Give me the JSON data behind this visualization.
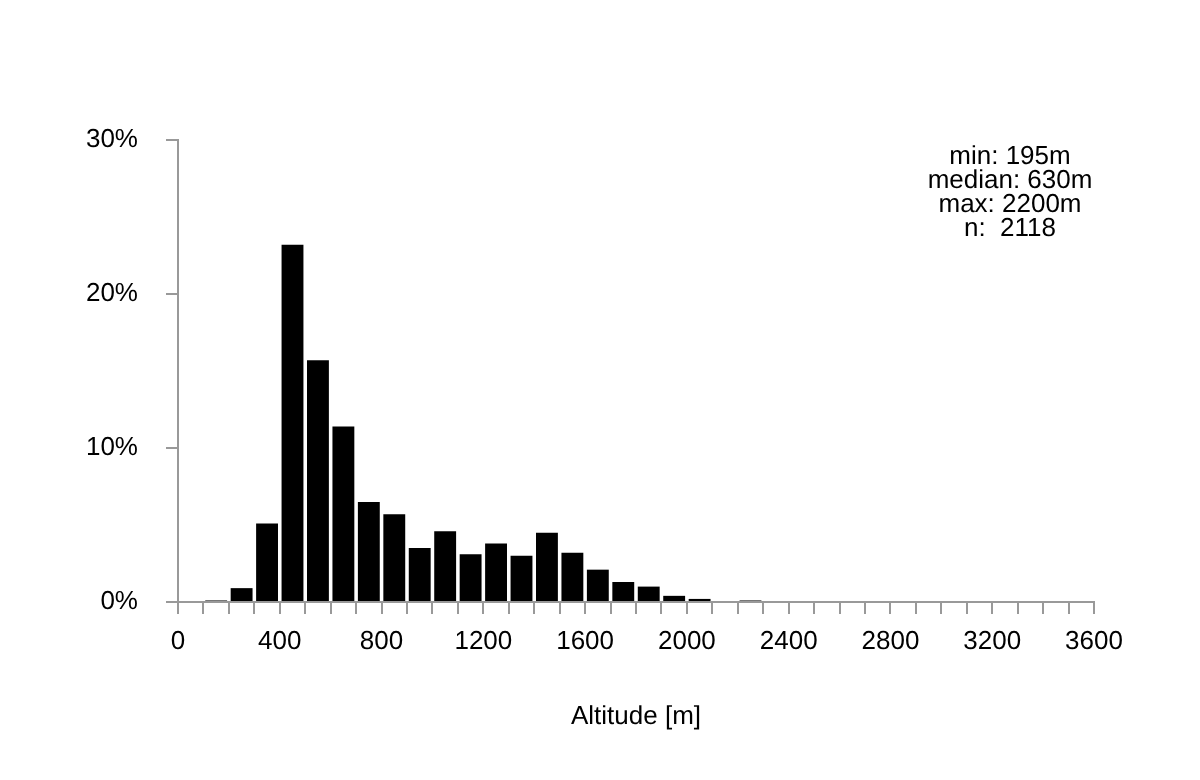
{
  "chart_data": {
    "type": "histogram",
    "xlabel": "Altitude [m]",
    "bins": [
      0,
      100,
      200,
      300,
      400,
      500,
      600,
      700,
      800,
      900,
      1000,
      1100,
      1200,
      1300,
      1400,
      1500,
      1600,
      1700,
      1800,
      1900,
      2000,
      2100,
      2200,
      2300,
      2400,
      2500,
      2600,
      2700,
      2800,
      2900,
      3000,
      3100,
      3200,
      3300,
      3400,
      3500,
      3600
    ],
    "values": [
      0,
      0.1,
      0.9,
      5.1,
      23.2,
      15.7,
      11.4,
      6.5,
      5.7,
      3.5,
      4.6,
      3.1,
      3.8,
      3.0,
      4.5,
      3.2,
      2.1,
      1.3,
      1.0,
      0.4,
      0.2,
      0,
      0.1,
      0,
      0,
      0,
      0,
      0,
      0,
      0,
      0,
      0,
      0,
      0,
      0,
      0
    ],
    "color": "#000000",
    "xlim": [
      0,
      3600
    ],
    "xticks": [
      0,
      {
        "value": 100,
        "label": null
      },
      {
        "value": 200,
        "label": null
      },
      {
        "value": 300,
        "label": null
      },
      400,
      {
        "value": 500,
        "label": null
      },
      {
        "value": 600,
        "label": null
      },
      {
        "value": 700,
        "label": null
      },
      800,
      {
        "value": 900,
        "label": null
      },
      {
        "value": 1000,
        "label": null
      },
      {
        "value": 1100,
        "label": null
      },
      1200,
      {
        "value": 1300,
        "label": null
      },
      {
        "value": 1400,
        "label": null
      },
      {
        "value": 1500,
        "label": null
      },
      1600,
      {
        "value": 1700,
        "label": null
      },
      {
        "value": 1800,
        "label": null
      },
      {
        "value": 1900,
        "label": null
      },
      2000,
      {
        "value": 2100,
        "label": null
      },
      {
        "value": 2200,
        "label": null
      },
      {
        "value": 2300,
        "label": null
      },
      2400,
      {
        "value": 2500,
        "label": null
      },
      {
        "value": 2600,
        "label": null
      },
      {
        "value": 2700,
        "label": null
      },
      2800,
      {
        "value": 2900,
        "label": null
      },
      {
        "value": 3000,
        "label": null
      },
      {
        "value": 3100,
        "label": null
      },
      3200,
      {
        "value": 3300,
        "label": null
      },
      {
        "value": 3400,
        "label": null
      },
      {
        "value": 3500,
        "label": null
      },
      3600
    ],
    "ylim": [
      0,
      30
    ],
    "yticks": [
      {
        "value": 0,
        "label": "0%"
      },
      {
        "value": 10,
        "label": "10%"
      },
      {
        "value": 20,
        "label": "20%"
      },
      {
        "value": 30,
        "label": "30%"
      }
    ],
    "grid": false,
    "legend": false,
    "annotations": [
      "min: 195m",
      "median: 630m",
      "max: 2200m",
      "n:  2118"
    ]
  }
}
